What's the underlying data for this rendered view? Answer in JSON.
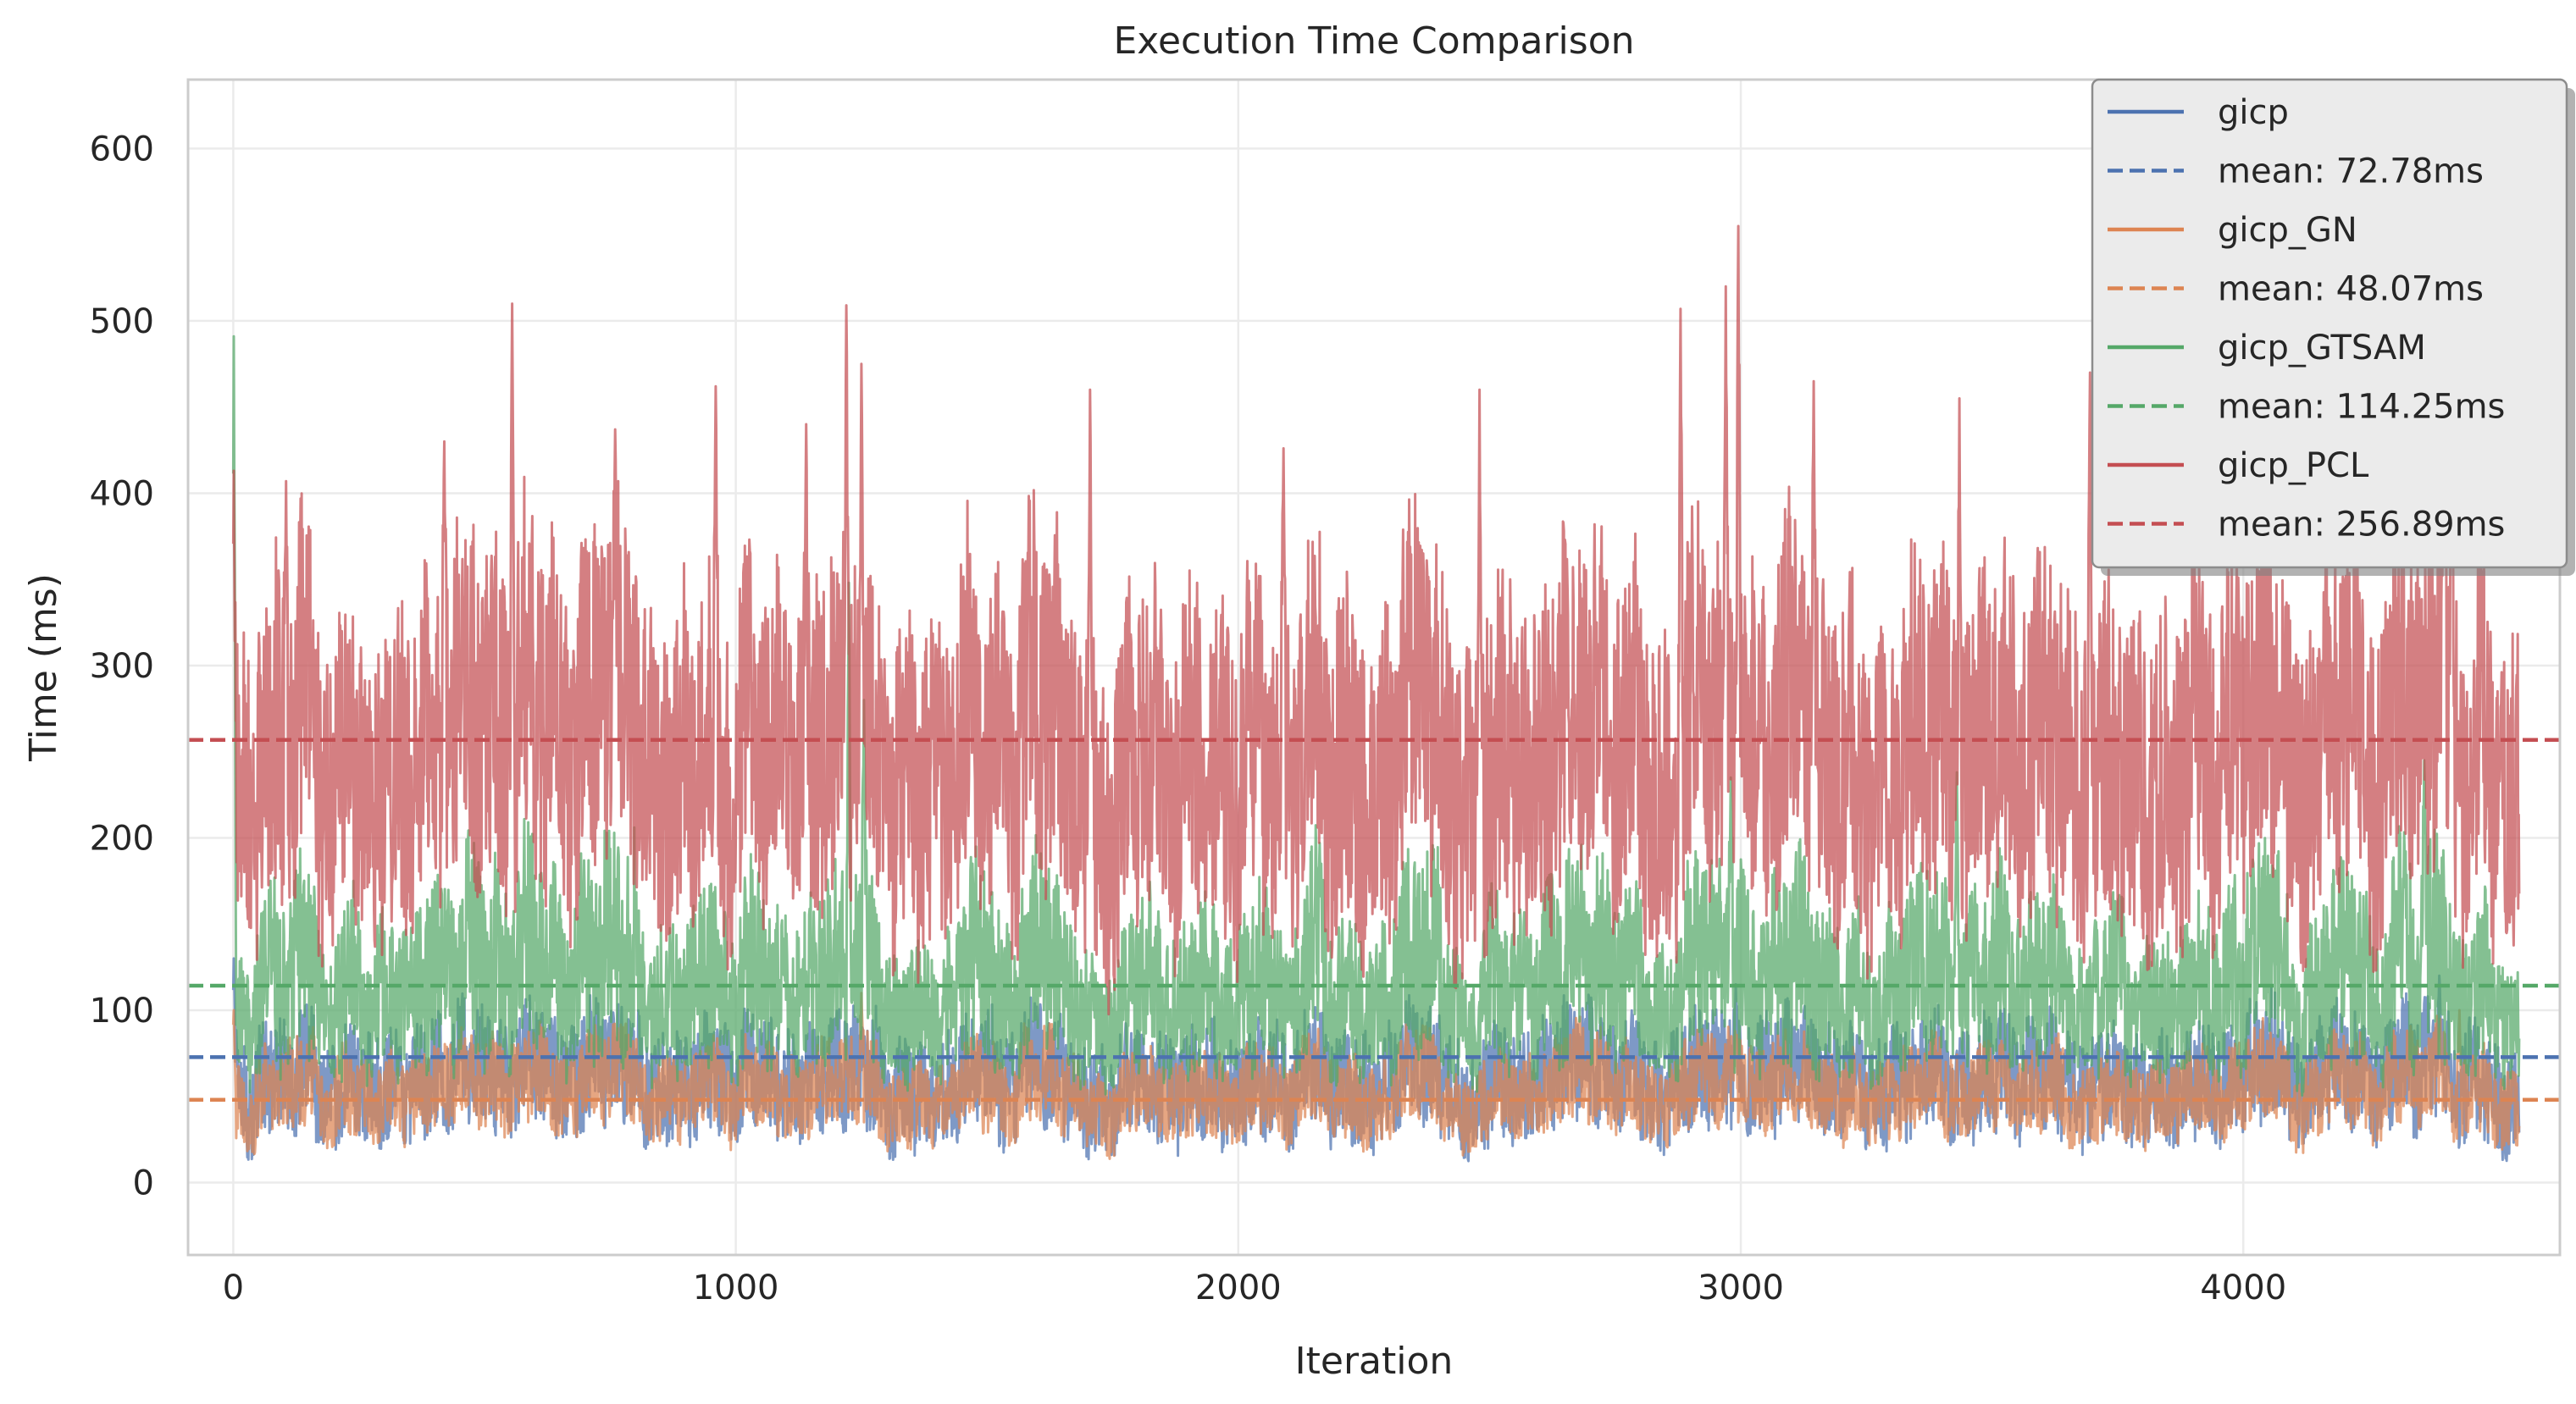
{
  "chart_data": {
    "type": "line",
    "title": "Execution Time Comparison",
    "xlabel": "Iteration",
    "ylabel": "Time (ms)",
    "xlim": [
      -90,
      4630
    ],
    "ylim": [
      -42,
      640
    ],
    "xticks": [
      0,
      1000,
      2000,
      3000,
      4000
    ],
    "yticks": [
      0,
      100,
      200,
      300,
      400,
      500,
      600
    ],
    "grid": true,
    "legend_position": "top-right",
    "n_points": 4550,
    "series": [
      {
        "name": "gicp",
        "color": "#4c72b0",
        "mean": 72.78,
        "mean_label": "mean: 72.78ms",
        "low_range": [
          20,
          45
        ],
        "high_range": [
          75,
          110
        ],
        "spikes": [
          {
            "x": 1,
            "y": 130
          },
          {
            "x": 2990,
            "y": 115
          },
          {
            "x": 4390,
            "y": 120
          }
        ]
      },
      {
        "name": "gicp_GN",
        "color": "#dd8452",
        "mean": 48.07,
        "mean_label": "mean: 48.07ms",
        "low_range": [
          20,
          45
        ],
        "high_range": [
          60,
          95
        ],
        "spikes": [
          {
            "x": 1,
            "y": 100
          },
          {
            "x": 1250,
            "y": 110
          },
          {
            "x": 4430,
            "y": 100
          }
        ]
      },
      {
        "name": "gicp_GTSAM",
        "color": "#55a868",
        "mean": 114.25,
        "mean_label": "mean: 114.25ms",
        "low_range": [
          60,
          90
        ],
        "high_range": [
          120,
          210
        ],
        "spikes": [
          {
            "x": 1,
            "y": 491
          },
          {
            "x": 1225,
            "y": 348
          },
          {
            "x": 1255,
            "y": 280
          },
          {
            "x": 2980,
            "y": 235
          },
          {
            "x": 3430,
            "y": 238
          },
          {
            "x": 4360,
            "y": 245
          }
        ]
      },
      {
        "name": "gicp_PCL",
        "color": "#c44e52",
        "mean": 256.89,
        "mean_label": "mean: 256.89ms",
        "low_range": [
          130,
          210
        ],
        "high_range": [
          300,
          400
        ],
        "spikes": [
          {
            "x": 1,
            "y": 413
          },
          {
            "x": 105,
            "y": 407
          },
          {
            "x": 420,
            "y": 430
          },
          {
            "x": 555,
            "y": 510
          },
          {
            "x": 760,
            "y": 437
          },
          {
            "x": 960,
            "y": 462
          },
          {
            "x": 1140,
            "y": 440
          },
          {
            "x": 1220,
            "y": 509
          },
          {
            "x": 1250,
            "y": 475
          },
          {
            "x": 1705,
            "y": 460
          },
          {
            "x": 2090,
            "y": 426
          },
          {
            "x": 2480,
            "y": 460
          },
          {
            "x": 2880,
            "y": 507
          },
          {
            "x": 2970,
            "y": 520
          },
          {
            "x": 2995,
            "y": 555
          },
          {
            "x": 3145,
            "y": 465
          },
          {
            "x": 3435,
            "y": 455
          },
          {
            "x": 3695,
            "y": 470
          },
          {
            "x": 4400,
            "y": 575
          },
          {
            "x": 4415,
            "y": 520
          }
        ]
      }
    ]
  }
}
